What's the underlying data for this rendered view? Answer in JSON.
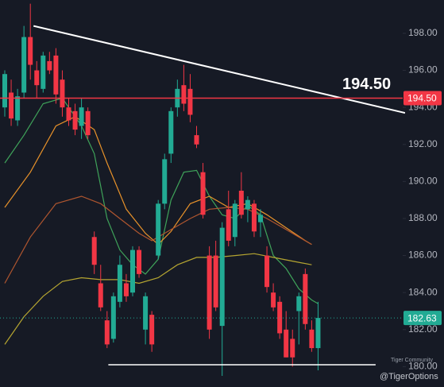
{
  "chart_data": {
    "type": "candlestick",
    "ylim": [
      178.9,
      199.8
    ],
    "yticks": [
      {
        "value": 180,
        "label": "180.00"
      },
      {
        "value": 182,
        "label": "182.00"
      },
      {
        "value": 184,
        "label": "184.00"
      },
      {
        "value": 186,
        "label": "186.00"
      },
      {
        "value": 188,
        "label": "188.00"
      },
      {
        "value": 190,
        "label": "190.00"
      },
      {
        "value": 192,
        "label": "192.00"
      },
      {
        "value": 194,
        "label": "194.00"
      },
      {
        "value": 196,
        "label": "196.00"
      },
      {
        "value": 198,
        "label": "198.00"
      }
    ],
    "up_color": "#22ab94",
    "down_color": "#f23645",
    "candles": {
      "open": [
        194.0,
        194.8,
        193.3,
        194.8,
        197.8,
        196.0,
        195.0,
        196.5,
        196.8,
        195.5,
        194.0,
        193.8,
        193.0,
        193.8,
        187.0,
        184.5,
        182.5,
        181.5,
        183.5,
        184.5,
        184.0,
        186.3,
        182.0,
        182.8,
        186.0,
        188.8,
        191.5,
        194.0,
        195.2,
        195.0,
        192.5,
        190.5,
        186.0,
        186.0,
        182.2,
        188.5,
        187.0,
        189.5,
        188.5,
        188.8,
        187.8,
        186.0,
        184.0,
        183.5,
        182.0,
        181.5,
        183.0,
        185.0,
        182.0,
        181.0
      ],
      "high": [
        196.0,
        195.5,
        195.0,
        198.4,
        199.6,
        196.5,
        197.0,
        197.0,
        197.2,
        196.0,
        194.5,
        194.2,
        194.5,
        194.0,
        187.3,
        185.5,
        183.0,
        184.0,
        186.0,
        185.0,
        186.5,
        186.5,
        184.0,
        183.0,
        189.0,
        191.5,
        194.0,
        195.5,
        196.3,
        195.8,
        193.0,
        191.0,
        186.5,
        186.8,
        187.8,
        189.5,
        189.0,
        190.5,
        189.2,
        189.0,
        188.5,
        186.5,
        184.5,
        183.8,
        183.0,
        182.0,
        184.0,
        185.3,
        182.5,
        183.5
      ],
      "low": [
        193.5,
        193.0,
        193.0,
        194.5,
        195.5,
        194.5,
        194.8,
        195.8,
        194.2,
        193.5,
        193.0,
        192.5,
        192.3,
        192.3,
        185.0,
        183.0,
        181.0,
        181.3,
        183.2,
        183.5,
        183.8,
        184.8,
        181.2,
        180.8,
        185.8,
        188.5,
        191.0,
        193.5,
        193.8,
        193.2,
        191.8,
        188.0,
        181.5,
        183.0,
        179.5,
        186.5,
        186.5,
        188.0,
        187.8,
        187.0,
        187.0,
        184.0,
        183.0,
        181.5,
        180.5,
        180.0,
        181.2,
        182.0,
        180.8,
        179.8
      ],
      "close": [
        195.8,
        193.4,
        194.6,
        197.8,
        196.3,
        195.2,
        196.8,
        196.0,
        194.7,
        194.0,
        193.3,
        192.8,
        194.0,
        192.5,
        185.5,
        183.2,
        181.2,
        183.8,
        185.5,
        183.8,
        186.3,
        185.0,
        183.8,
        181.2,
        188.8,
        191.2,
        193.8,
        195.0,
        194.2,
        193.6,
        192.0,
        188.2,
        182.0,
        183.2,
        187.5,
        186.8,
        188.8,
        188.2,
        189.0,
        187.3,
        188.2,
        184.3,
        183.2,
        181.8,
        180.5,
        180.5,
        183.8,
        182.3,
        181.0,
        182.63
      ]
    },
    "lines": [
      {
        "color": "#3fa35a",
        "x": [
          0,
          3,
          6,
          9,
          12,
          14,
          16,
          18,
          20,
          22,
          24,
          26,
          28,
          30,
          32,
          34,
          36,
          38,
          40,
          42,
          44,
          46,
          48,
          49
        ],
        "values": [
          191.0,
          192.5,
          194.2,
          194.5,
          193.0,
          191.5,
          188.0,
          186.3,
          185.5,
          185.0,
          185.8,
          189.0,
          190.5,
          190.6,
          189.2,
          188.2,
          188.0,
          188.7,
          188.2,
          186.0,
          185.3,
          184.2,
          183.6,
          183.4
        ]
      },
      {
        "color": "#e8922a",
        "x": [
          0,
          4,
          8,
          11,
          14,
          16,
          19,
          22,
          24,
          26,
          29,
          32,
          35,
          38,
          41,
          44,
          47,
          48
        ],
        "values": [
          188.6,
          190.5,
          193.0,
          193.5,
          192.8,
          191.0,
          188.5,
          187.2,
          186.6,
          187.3,
          188.8,
          189.2,
          188.6,
          188.8,
          188.2,
          187.5,
          186.8,
          186.6
        ]
      },
      {
        "color": "#b0562f",
        "x": [
          0,
          4,
          8,
          12,
          15,
          18,
          21,
          23,
          26,
          29,
          32,
          35,
          38,
          41,
          44,
          46,
          48
        ],
        "values": [
          184.5,
          187.0,
          188.8,
          189.2,
          188.8,
          188.0,
          187.2,
          186.8,
          187.4,
          188.0,
          188.5,
          188.6,
          188.5,
          188.0,
          187.4,
          187.0,
          186.6
        ]
      },
      {
        "color": "#b5a531",
        "x": [
          0,
          3,
          6,
          9,
          12,
          15,
          18,
          21,
          24,
          27,
          30,
          33,
          36,
          39,
          42,
          45,
          48
        ],
        "values": [
          181.2,
          182.7,
          183.8,
          184.6,
          184.8,
          184.7,
          184.7,
          184.5,
          184.8,
          185.5,
          185.9,
          185.9,
          186.0,
          186.1,
          185.9,
          185.7,
          185.5
        ]
      }
    ],
    "trendline": {
      "color": "#ffffff",
      "x": [
        4.5,
        62.6
      ],
      "values": [
        198.4,
        193.7
      ]
    },
    "support": {
      "color": "#ffffff",
      "x": [
        16.2,
        58.0
      ],
      "values": [
        180.1,
        180.1
      ]
    },
    "resistance": {
      "value": 194.5,
      "label": "194.50",
      "color": "#f23645"
    },
    "last_price": {
      "value": 182.63,
      "label": "182.63",
      "color": "#22ab94"
    },
    "watermark": [
      "Tiger Community",
      "@TigerOptions"
    ]
  }
}
